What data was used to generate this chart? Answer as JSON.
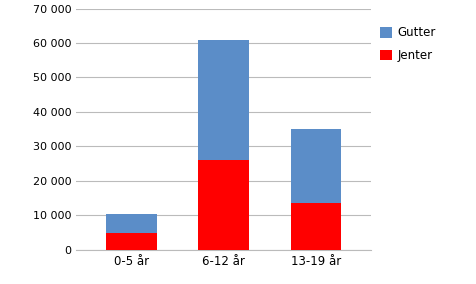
{
  "categories": [
    "0-5 år",
    "6-12 år",
    "13-19 år"
  ],
  "jenter": [
    5000,
    26000,
    13500
  ],
  "gutter": [
    5500,
    35000,
    21500
  ],
  "color_jenter": "#FF0000",
  "color_gutter": "#5B8DC8",
  "ylim": [
    0,
    70000
  ],
  "yticks": [
    0,
    10000,
    20000,
    30000,
    40000,
    50000,
    60000,
    70000
  ],
  "legend_gutter": "Gutter",
  "legend_jenter": "Jenter",
  "background_color": "#FFFFFF",
  "grid_color": "#BBBBBB",
  "bar_width": 0.55
}
